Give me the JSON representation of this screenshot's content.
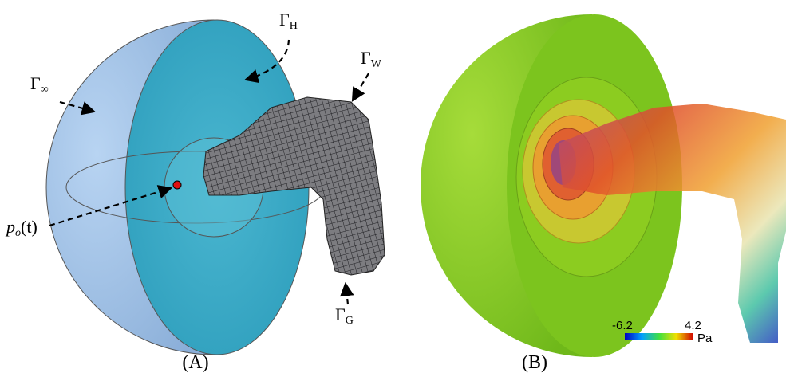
{
  "panel_a": {
    "caption": "(A)",
    "labels": [
      {
        "symbol": "Γ",
        "subscript": "∞"
      },
      {
        "symbol": "Γ",
        "subscript": "H"
      },
      {
        "symbol": "Γ",
        "subscript": "W"
      },
      {
        "symbol": "Γ",
        "subscript": "G"
      }
    ],
    "point_label": {
      "symbol": "p",
      "subscript": "o",
      "argument": "(t)"
    }
  },
  "panel_b": {
    "caption": "(B)",
    "colorbar": {
      "min": -6.2,
      "max": 4.2,
      "unit": "Pa"
    }
  }
}
